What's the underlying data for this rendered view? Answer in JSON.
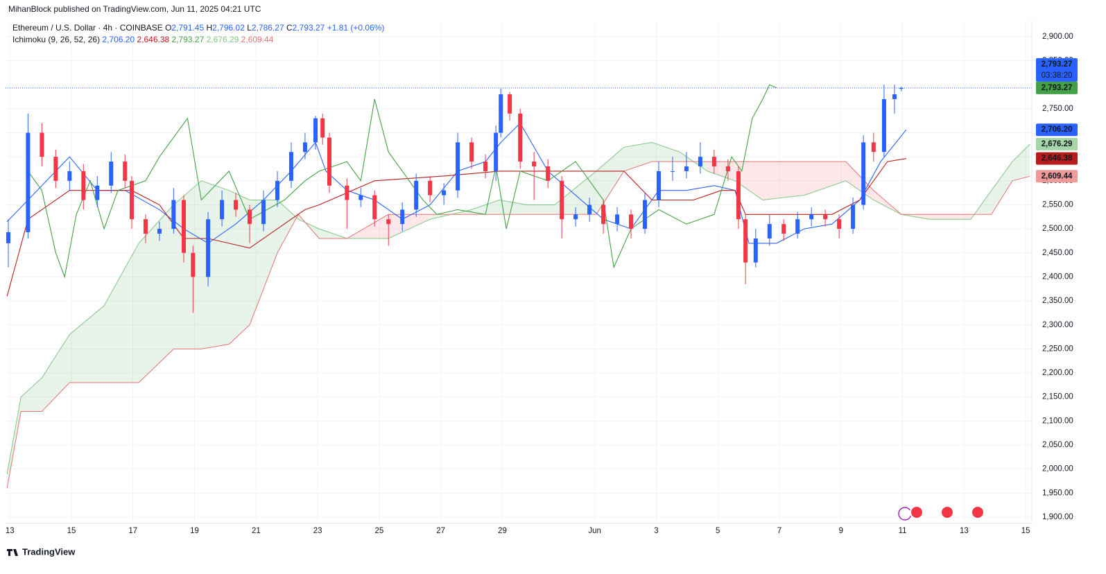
{
  "header": {
    "publisher": "MihanBlock published on TradingView.com, Jun 11, 2025 04:21 UTC",
    "symbol": "Ethereum / U.S. Dollar · 4h · COINBASE",
    "ohlc": [
      {
        "key": "O",
        "value": "2,791.45"
      },
      {
        "key": "H",
        "value": "2,796.02"
      },
      {
        "key": "L",
        "value": "2,786.27"
      },
      {
        "key": "C",
        "value": "2,793.27"
      }
    ],
    "change": "+1.81 (+0.06%)",
    "value_color": "#2962ff",
    "indicator": "Ichimoku (9, 26, 52, 26)",
    "indicator_values": [
      {
        "text": "2,706.20",
        "color": "#2962ff"
      },
      {
        "text": "2,646.38",
        "color": "#b71c1c"
      },
      {
        "text": "2,793.27",
        "color": "#43a047"
      },
      {
        "text": "2,676.29",
        "color": "#81c784"
      },
      {
        "text": "2,609.44",
        "color": "#e57373"
      }
    ],
    "countdown": "03:38:20"
  },
  "footer": {
    "brand": "TradingView"
  },
  "chart_data": {
    "type": "candlestick",
    "up_color": "#2962ff",
    "down_color": "#f23645",
    "grid": true,
    "xlim": [
      -0.14,
      33.2
    ],
    "ylim": [
      1887,
      2933
    ],
    "xticks": [
      {
        "value": 0,
        "label": "13"
      },
      {
        "value": 2,
        "label": "15"
      },
      {
        "value": 4,
        "label": "17"
      },
      {
        "value": 6,
        "label": "19"
      },
      {
        "value": 8,
        "label": "21"
      },
      {
        "value": 10,
        "label": "23"
      },
      {
        "value": 12,
        "label": "25"
      },
      {
        "value": 14,
        "label": "27"
      },
      {
        "value": 16,
        "label": "29"
      },
      {
        "value": 19,
        "label": "Jun"
      },
      {
        "value": 21,
        "label": "3"
      },
      {
        "value": 23,
        "label": "5"
      },
      {
        "value": 25,
        "label": "7"
      },
      {
        "value": 27,
        "label": "9"
      },
      {
        "value": 29,
        "label": "11"
      },
      {
        "value": 31,
        "label": "13"
      },
      {
        "value": 33,
        "label": "15"
      }
    ],
    "yticks": [
      {
        "value": 1900,
        "label": "1,900.00"
      },
      {
        "value": 1950,
        "label": "1,950.00"
      },
      {
        "value": 2000,
        "label": "2,000.00"
      },
      {
        "value": 2050,
        "label": "2,050.00"
      },
      {
        "value": 2100,
        "label": "2,100.00"
      },
      {
        "value": 2150,
        "label": "2,150.00"
      },
      {
        "value": 2200,
        "label": "2,200.00"
      },
      {
        "value": 2250,
        "label": "2,250.00"
      },
      {
        "value": 2300,
        "label": "2,300.00"
      },
      {
        "value": 2350,
        "label": "2,350.00"
      },
      {
        "value": 2400,
        "label": "2,400.00"
      },
      {
        "value": 2450,
        "label": "2,450.00"
      },
      {
        "value": 2500,
        "label": "2,500.00"
      },
      {
        "value": 2550,
        "label": "2,550.00"
      },
      {
        "value": 2600,
        "label": "2,600.00"
      },
      {
        "value": 2650,
        "label": "2,650.00"
      },
      {
        "value": 2700,
        "label": "2,700.00"
      },
      {
        "value": 2750,
        "label": "2,750.00"
      },
      {
        "value": 2800,
        "label": "2,800.00"
      },
      {
        "value": 2850,
        "label": "2,850.00"
      },
      {
        "value": 2900,
        "label": "2,900.00"
      }
    ],
    "x": [
      -0.05,
      0.59,
      1.04,
      1.49,
      1.94,
      2.39,
      2.84,
      3.29,
      3.74,
      3.96,
      4.41,
      4.86,
      5.32,
      5.65,
      5.95,
      6.44,
      6.89,
      7.34,
      7.79,
      8.24,
      8.69,
      9.14,
      9.59,
      9.93,
      10.16,
      10.38,
      10.95,
      11.4,
      11.85,
      12.3,
      12.75,
      13.2,
      13.65,
      14.1,
      14.55,
      15.0,
      15.45,
      15.79,
      15.95,
      16.24,
      16.58,
      17.03,
      17.48,
      17.93,
      18.38,
      18.83,
      19.28,
      19.73,
      20.18,
      20.63,
      21.08,
      21.53,
      21.98,
      22.43,
      22.88,
      23.33,
      23.67,
      23.9,
      24.23,
      24.68,
      25.14,
      25.59,
      26.04,
      26.49,
      26.94,
      27.39,
      27.73,
      28.06,
      28.4,
      28.74,
      28.96
    ],
    "open": [
      2470,
      2493,
      2700,
      2650,
      2600,
      2620,
      2560,
      2590,
      2640,
      2600,
      2520,
      2490,
      2500,
      2560,
      2450,
      2400,
      2520,
      2560,
      2540,
      2510,
      2560,
      2600,
      2660,
      2680,
      2730,
      2690,
      2590,
      2560,
      2570,
      2520,
      2510,
      2540,
      2600,
      2570,
      2580,
      2680,
      2640,
      2620,
      2700,
      2780,
      2740,
      2640,
      2630,
      2600,
      2520,
      2530,
      2550,
      2510,
      2530,
      2500,
      2560,
      2620,
      2620,
      2630,
      2650,
      2630,
      2620,
      2520,
      2430,
      2480,
      2510,
      2490,
      2520,
      2530,
      2520,
      2500,
      2550,
      2680,
      2660,
      2770,
      2791.45
    ],
    "high": [
      2520,
      2740,
      2720,
      2665,
      2640,
      2635,
      2610,
      2660,
      2655,
      2610,
      2530,
      2515,
      2585,
      2570,
      2465,
      2535,
      2580,
      2575,
      2550,
      2580,
      2620,
      2680,
      2700,
      2735,
      2740,
      2700,
      2605,
      2585,
      2580,
      2530,
      2555,
      2615,
      2610,
      2595,
      2700,
      2690,
      2655,
      2715,
      2792,
      2785,
      2750,
      2660,
      2645,
      2610,
      2545,
      2565,
      2560,
      2545,
      2540,
      2575,
      2640,
      2650,
      2660,
      2680,
      2665,
      2645,
      2630,
      2530,
      2500,
      2530,
      2520,
      2535,
      2545,
      2540,
      2530,
      2565,
      2695,
      2700,
      2800,
      2800,
      2796.02
    ],
    "low": [
      2420,
      2480,
      2630,
      2585,
      2580,
      2540,
      2545,
      2575,
      2585,
      2500,
      2470,
      2475,
      2490,
      2430,
      2325,
      2380,
      2505,
      2525,
      2470,
      2495,
      2545,
      2585,
      2645,
      2665,
      2675,
      2575,
      2500,
      2545,
      2505,
      2465,
      2495,
      2525,
      2555,
      2550,
      2565,
      2625,
      2605,
      2600,
      2690,
      2725,
      2625,
      2560,
      2585,
      2480,
      2505,
      2515,
      2490,
      2495,
      2480,
      2490,
      2545,
      2600,
      2605,
      2615,
      2615,
      2600,
      2500,
      2385,
      2420,
      2465,
      2475,
      2480,
      2505,
      2505,
      2480,
      2490,
      2540,
      2640,
      2650,
      2740,
      2786.27
    ],
    "close": [
      2493,
      2700,
      2650,
      2600,
      2620,
      2560,
      2590,
      2640,
      2600,
      2520,
      2490,
      2500,
      2560,
      2450,
      2400,
      2520,
      2560,
      2540,
      2510,
      2560,
      2600,
      2660,
      2680,
      2730,
      2690,
      2590,
      2560,
      2570,
      2520,
      2510,
      2540,
      2600,
      2570,
      2580,
      2680,
      2640,
      2620,
      2700,
      2780,
      2740,
      2640,
      2630,
      2600,
      2520,
      2530,
      2550,
      2510,
      2530,
      2500,
      2560,
      2620,
      2620,
      2630,
      2650,
      2630,
      2620,
      2520,
      2430,
      2480,
      2510,
      2490,
      2520,
      2530,
      2520,
      2500,
      2550,
      2680,
      2660,
      2770,
      2780,
      2793.27
    ],
    "cloud": {
      "span_a_color": "#81c784",
      "span_b_color": "#e57373",
      "fill_up": "rgba(67,160,71,0.12)",
      "fill_down": "rgba(242,54,69,0.12)",
      "x": [
        -0.09,
        0.36,
        1.04,
        1.94,
        3.06,
        4.19,
        5.32,
        6.22,
        7.12,
        7.79,
        8.69,
        9.37,
        10.05,
        10.95,
        12.3,
        13.65,
        15.0,
        15.9,
        16.8,
        17.7,
        19.05,
        19.95,
        20.86,
        21.76,
        22.66,
        23.56,
        24.46,
        25.81,
        27.16,
        28.06,
        28.96,
        29.86,
        31.22,
        31.89,
        32.57,
        33.14
      ],
      "span_a": [
        1990,
        2150,
        2190,
        2280,
        2340,
        2470,
        2550,
        2600,
        2580,
        2560,
        2560,
        2520,
        2500,
        2480,
        2480,
        2520,
        2540,
        2560,
        2550,
        2550,
        2620,
        2670,
        2680,
        2660,
        2620,
        2600,
        2560,
        2570,
        2600,
        2560,
        2530,
        2520,
        2520,
        2580,
        2640,
        2676.29
      ],
      "span_b": [
        1960,
        2120,
        2120,
        2180,
        2180,
        2180,
        2250,
        2250,
        2260,
        2300,
        2450,
        2530,
        2480,
        2480,
        2530,
        2530,
        2530,
        2530,
        2530,
        2530,
        2530,
        2620,
        2640,
        2640,
        2640,
        2640,
        2640,
        2640,
        2640,
        2580,
        2530,
        2530,
        2530,
        2530,
        2600,
        2609.44
      ]
    },
    "lines": [
      {
        "color": "#2962ff",
        "x": [
          -0.09,
          0.59,
          1.94,
          2.84,
          3.74,
          4.86,
          5.65,
          6.44,
          7.34,
          8.24,
          9.14,
          9.93,
          10.27,
          10.95,
          11.85,
          12.75,
          13.65,
          14.55,
          15.45,
          15.95,
          16.58,
          17.48,
          18.38,
          19.28,
          20.18,
          21.08,
          21.98,
          22.88,
          23.56,
          24.01,
          24.91,
          25.81,
          26.71,
          27.61,
          28.29,
          29.12
        ],
        "values": [
          2515,
          2560,
          2650,
          2580,
          2580,
          2540,
          2500,
          2470,
          2510,
          2560,
          2620,
          2680,
          2620,
          2580,
          2560,
          2520,
          2550,
          2620,
          2640,
          2680,
          2720,
          2620,
          2570,
          2520,
          2500,
          2580,
          2580,
          2590,
          2580,
          2470,
          2470,
          2500,
          2510,
          2560,
          2640,
          2706.2
        ]
      },
      {
        "color": "#b71c1c",
        "x": [
          -0.09,
          0.59,
          1.04,
          1.94,
          3.96,
          4.86,
          5.65,
          6.44,
          7.79,
          8.69,
          9.59,
          10.05,
          11.85,
          14.1,
          15.9,
          17.7,
          19.95,
          20.86,
          22.21,
          23.11,
          23.56,
          23.9,
          26.71,
          27.61,
          28.51,
          29.12
        ],
        "values": [
          2360,
          2520,
          2540,
          2580,
          2580,
          2550,
          2480,
          2480,
          2460,
          2500,
          2540,
          2550,
          2600,
          2610,
          2620,
          2620,
          2620,
          2560,
          2560,
          2580,
          2580,
          2530,
          2530,
          2560,
          2640,
          2646.38
        ]
      },
      {
        "color": "#43a047",
        "x": [
          0.59,
          1.04,
          1.49,
          1.78,
          2.16,
          2.61,
          3.06,
          3.51,
          4.41,
          4.86,
          5.77,
          6.22,
          7.12,
          7.79,
          8.92,
          9.59,
          10.05,
          10.95,
          11.4,
          11.85,
          12.3,
          12.75,
          13.42,
          13.87,
          14.55,
          15.45,
          15.79,
          16.13,
          16.58,
          17.48,
          18.38,
          19.28,
          19.62,
          20.18,
          21.08,
          21.98,
          22.88,
          23.45,
          23.78,
          24.12,
          24.46,
          24.68,
          24.91
        ],
        "values": [
          2620,
          2580,
          2450,
          2400,
          2530,
          2600,
          2500,
          2580,
          2600,
          2650,
          2730,
          2560,
          2620,
          2520,
          2560,
          2600,
          2620,
          2640,
          2600,
          2770,
          2660,
          2620,
          2560,
          2530,
          2540,
          2530,
          2630,
          2500,
          2620,
          2600,
          2640,
          2560,
          2420,
          2500,
          2540,
          2510,
          2530,
          2650,
          2620,
          2730,
          2770,
          2800,
          2793.27
        ]
      }
    ],
    "last_price": 2793.27,
    "last_price_color": "#2962ff",
    "price_tags": [
      {
        "value": 2793.27,
        "label": "2,793.27",
        "color": "#2962ff"
      },
      {
        "value": 2793.27,
        "label": "2,793.27",
        "color": "#43a047"
      },
      {
        "value": 2706.2,
        "label": "2,706.20",
        "color": "#2962ff"
      },
      {
        "value": 2676.29,
        "label": "2,676.29",
        "color": "#a5d6a7"
      },
      {
        "value": 2646.38,
        "label": "2,646.38",
        "color": "#b71c1c"
      },
      {
        "value": 2609.44,
        "label": "2,609.44",
        "color": "#ef9a9a"
      }
    ]
  }
}
